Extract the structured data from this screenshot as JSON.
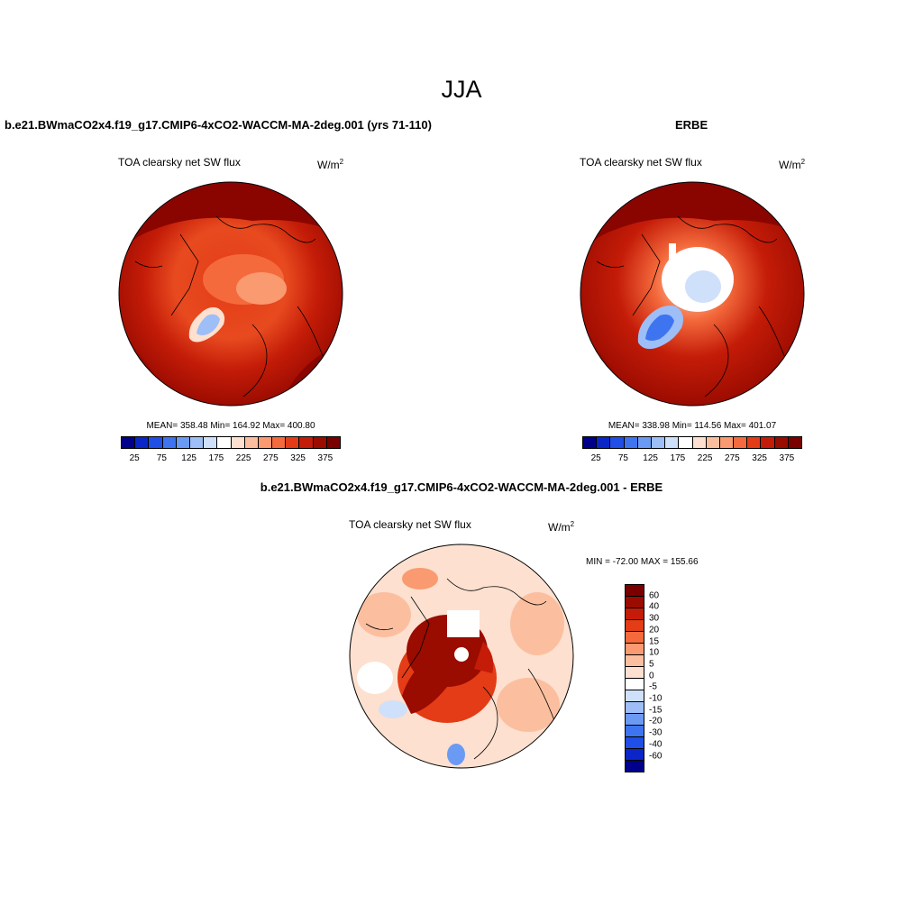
{
  "title": "JJA",
  "panels": [
    {
      "title": "b.e21.BWmaCO2x4.f19_g17.CMIP6-4xCO2-WACCM-MA-2deg.001 (yrs 71-110)",
      "variable": "TOA clearsky net SW flux",
      "units": "W/m",
      "units_sup": "2",
      "stats": "MEAN= 358.48  Min= 164.92  Max= 400.80",
      "colorbar_ticks": [
        "25",
        "75",
        "125",
        "175",
        "225",
        "275",
        "325",
        "375"
      ]
    },
    {
      "title": "ERBE",
      "variable": "TOA clearsky net SW flux",
      "units": "W/m",
      "units_sup": "2",
      "stats": "MEAN= 338.98  Min= 114.56  Max= 401.07",
      "colorbar_ticks": [
        "25",
        "75",
        "125",
        "175",
        "225",
        "275",
        "325",
        "375"
      ]
    },
    {
      "title": "b.e21.BWmaCO2x4.f19_g17.CMIP6-4xCO2-WACCM-MA-2deg.001 - ERBE",
      "variable": "TOA clearsky net SW flux",
      "units": "W/m",
      "units_sup": "2",
      "stats": "MIN = -72.00  MAX = 155.66",
      "colorbar_ticks": [
        "60",
        "40",
        "30",
        "20",
        "15",
        "10",
        "5",
        "0",
        "-5",
        "-10",
        "-15",
        "-20",
        "-30",
        "-40",
        "-60"
      ]
    }
  ],
  "colorscales": {
    "absolute": [
      "#00008b",
      "#0a26c8",
      "#1f4fe6",
      "#3f74f0",
      "#6b9af5",
      "#9dbef7",
      "#cfe0fa",
      "#ffffff",
      "#fde0cf",
      "#fbbfa0",
      "#f99a70",
      "#f46a3c",
      "#e33c17",
      "#c41c08",
      "#9a0b00",
      "#7a0000"
    ],
    "difference": [
      "#7a0000",
      "#9a0b00",
      "#c41c08",
      "#e33c17",
      "#f46a3c",
      "#f99a70",
      "#fbbfa0",
      "#fde0cf",
      "#ffffff",
      "#cfe0fa",
      "#9dbef7",
      "#6b9af5",
      "#3f74f0",
      "#1f4fe6",
      "#0a26c8",
      "#00008b"
    ]
  }
}
